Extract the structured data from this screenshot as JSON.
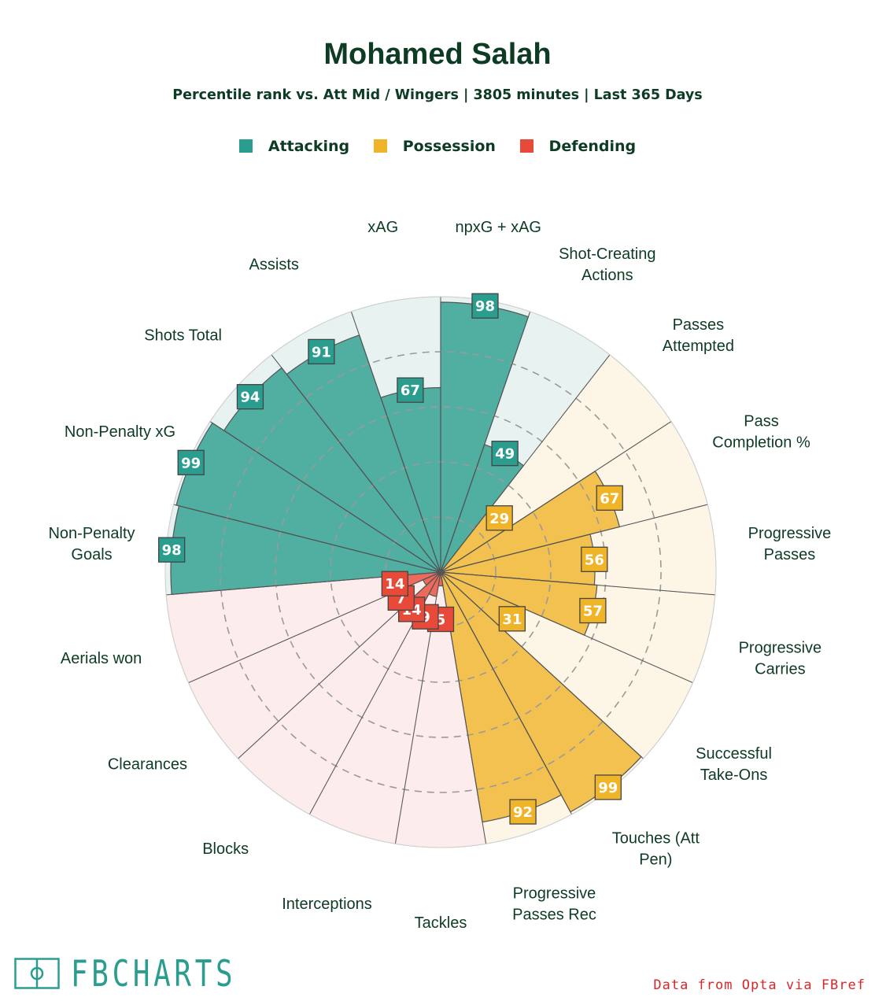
{
  "title": "Mohamed Salah",
  "subtitle": "Percentile rank vs. Att Mid / Wingers | 3805 minutes | Last 365 Days",
  "legend": [
    {
      "label": "Attacking",
      "color": "#2a9d8f"
    },
    {
      "label": "Possession",
      "color": "#f0b429"
    },
    {
      "label": "Defending",
      "color": "#e84a3a"
    }
  ],
  "chart_data": {
    "type": "radial-bar",
    "rlim": [
      0,
      100
    ],
    "grid": true,
    "groups": {
      "Attacking": {
        "color": "#2a9d8f",
        "background": "#e8f3f1"
      },
      "Possession": {
        "color": "#f0b429",
        "background": "#fdf6e7"
      },
      "Defending": {
        "color": "#e84a3a",
        "background": "#fdecec"
      }
    },
    "categories": [
      {
        "label": [
          "npxG + xAG"
        ],
        "value": 98,
        "group": "Attacking"
      },
      {
        "label": [
          "Shot-Creating",
          "Actions"
        ],
        "value": 49,
        "group": "Attacking"
      },
      {
        "label": [
          "Passes",
          "Attempted"
        ],
        "value": 29,
        "group": "Possession"
      },
      {
        "label": [
          "Pass",
          "Completion %"
        ],
        "value": 67,
        "group": "Possession"
      },
      {
        "label": [
          "Progressive",
          "Passes"
        ],
        "value": 56,
        "group": "Possession"
      },
      {
        "label": [
          "Progressive",
          "Carries"
        ],
        "value": 57,
        "group": "Possession"
      },
      {
        "label": [
          "Successful",
          "Take-Ons"
        ],
        "value": 31,
        "group": "Possession"
      },
      {
        "label": [
          "Touches (Att",
          "Pen)"
        ],
        "value": 99,
        "group": "Possession"
      },
      {
        "label": [
          "Progressive",
          "Passes Rec"
        ],
        "value": 92,
        "group": "Possession"
      },
      {
        "label": [
          "Tackles"
        ],
        "value": 5,
        "group": "Defending"
      },
      {
        "label": [
          "Interceptions"
        ],
        "value": 9,
        "group": "Defending"
      },
      {
        "label": [
          "Blocks"
        ],
        "value": 14,
        "group": "Defending"
      },
      {
        "label": [
          "Clearances"
        ],
        "value": 7,
        "group": "Defending"
      },
      {
        "label": [
          "Aerials won"
        ],
        "value": 14,
        "group": "Defending"
      },
      {
        "label": [
          "Non-Penalty",
          "Goals"
        ],
        "value": 98,
        "group": "Attacking"
      },
      {
        "label": [
          "Non-Penalty xG"
        ],
        "value": 99,
        "group": "Attacking"
      },
      {
        "label": [
          "Shots Total"
        ],
        "value": 94,
        "group": "Attacking"
      },
      {
        "label": [
          "Assists"
        ],
        "value": 91,
        "group": "Attacking"
      },
      {
        "label": [
          "xAG"
        ],
        "value": 67,
        "group": "Attacking"
      }
    ]
  },
  "logo": {
    "text": "FBCHARTS",
    "color": "#2a9d8f"
  },
  "credit": "Data from Opta via FBref"
}
